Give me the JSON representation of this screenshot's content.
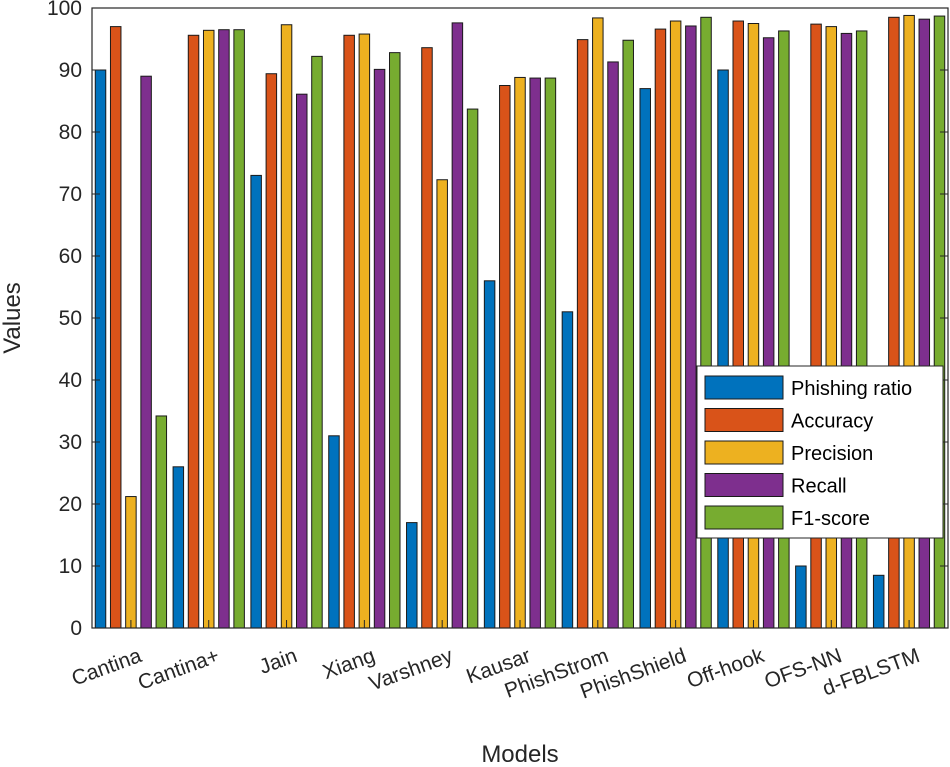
{
  "chart_data": {
    "type": "bar",
    "title": "",
    "xlabel": "Models",
    "ylabel": "Values",
    "ylim": [
      0,
      100
    ],
    "yticks": [
      0,
      10,
      20,
      30,
      40,
      50,
      60,
      70,
      80,
      90,
      100
    ],
    "legend_position": "right-middle",
    "categories": [
      "Cantina",
      "Cantina+",
      "Jain",
      "Xiang",
      "Varshney",
      "Kausar",
      "PhishStrom",
      "PhishShield",
      "Off-hook",
      "OFS-NN",
      "d-FBLSTM"
    ],
    "series": [
      {
        "name": "Phishing ratio",
        "color": "#0072BD",
        "values": [
          90,
          26,
          73,
          31,
          17,
          56,
          51,
          87,
          90,
          10,
          8.5
        ]
      },
      {
        "name": "Accuracy",
        "color": "#D95319",
        "values": [
          97,
          95.6,
          89.4,
          95.6,
          93.6,
          87.5,
          94.9,
          96.6,
          97.9,
          97.4,
          98.5
        ]
      },
      {
        "name": "Precision",
        "color": "#EDB120",
        "values": [
          21.2,
          96.4,
          97.3,
          95.8,
          72.3,
          88.8,
          98.4,
          97.9,
          97.5,
          97,
          98.8
        ]
      },
      {
        "name": "Recall",
        "color": "#7E2F8E",
        "values": [
          89,
          96.5,
          86.1,
          90.1,
          97.6,
          88.7,
          91.3,
          97.1,
          95.2,
          95.9,
          98.2
        ]
      },
      {
        "name": "F1-score",
        "color": "#77AC30",
        "values": [
          34.2,
          96.5,
          92.2,
          92.8,
          83.7,
          88.7,
          94.8,
          98.5,
          96.3,
          96.3,
          98.7
        ]
      }
    ]
  }
}
